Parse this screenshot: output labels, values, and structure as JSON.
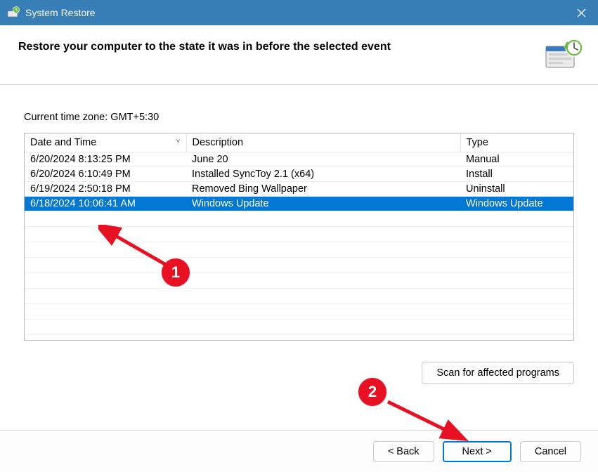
{
  "window": {
    "title": "System Restore"
  },
  "header": {
    "heading": "Restore your computer to the state it was in before the selected event"
  },
  "timezone_label": "Current time zone: GMT+5:30",
  "table": {
    "columns": {
      "date": "Date and Time",
      "desc": "Description",
      "type": "Type"
    },
    "sort_indicator": "˅",
    "rows": [
      {
        "date": "6/20/2024 8:13:25 PM",
        "desc": "June 20",
        "type": "Manual",
        "selected": false
      },
      {
        "date": "6/20/2024 6:10:49 PM",
        "desc": "Installed SyncToy 2.1 (x64)",
        "type": "Install",
        "selected": false
      },
      {
        "date": "6/19/2024 2:50:18 PM",
        "desc": "Removed Bing Wallpaper",
        "type": "Uninstall",
        "selected": false
      },
      {
        "date": "6/18/2024 10:06:41 AM",
        "desc": "Windows Update",
        "type": "Windows Update",
        "selected": true
      }
    ],
    "empty_rows": 8
  },
  "buttons": {
    "scan": "Scan for affected programs",
    "back": "< Back",
    "next": "Next >",
    "cancel": "Cancel"
  },
  "annotations": {
    "badge1": "1",
    "badge2": "2",
    "color": "#e81123"
  }
}
